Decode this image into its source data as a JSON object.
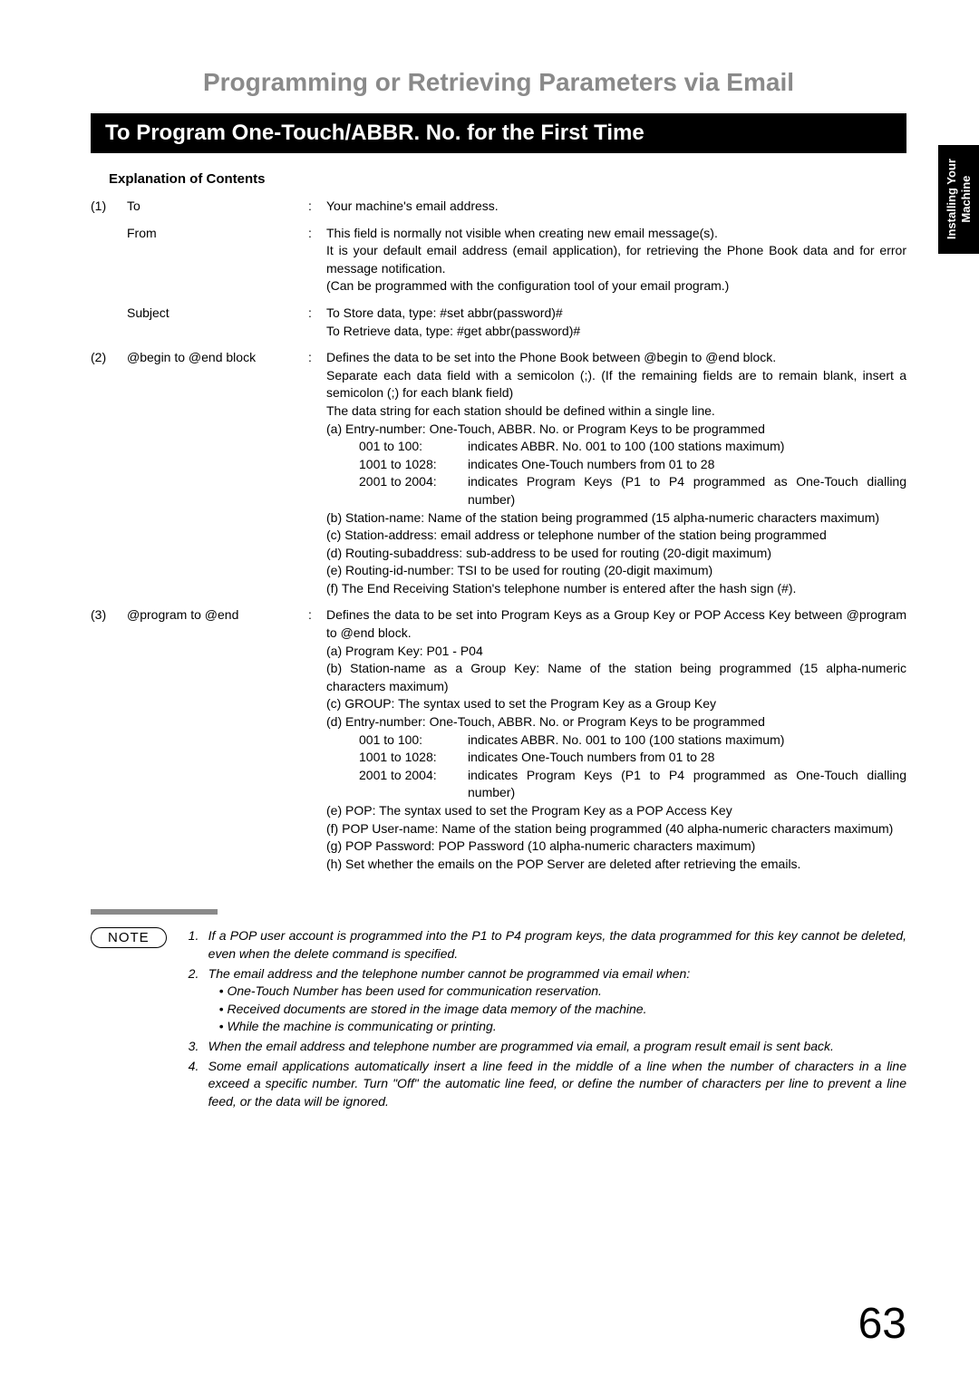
{
  "mainTitle": "Programming or Retrieving Parameters via Email",
  "sectionBar": "To Program One-Touch/ABBR. No. for the First Time",
  "sideTab": "Installing Your\nMachine",
  "explanationTitle": "Explanation of Contents",
  "rows": [
    {
      "num": "(1)",
      "label": "To",
      "desc": "Your machine's email address."
    },
    {
      "num": "",
      "label": "From",
      "desc": "This field is normally not visible when creating new email message(s).\nIt is your default email address (email application), for retrieving the Phone Book data and for error message notification.\n(Can be programmed with the configuration tool of your email program.)"
    },
    {
      "num": "",
      "label": "Subject",
      "desc": "To Store data, type: #set abbr(password)#\nTo Retrieve data, type: #get abbr(password)#"
    }
  ],
  "row2": {
    "num": "(2)",
    "label": "@begin to @end block",
    "intro": "Defines the data to be set into the Phone Book between @begin to @end block.\nSeparate each data field with a semicolon (;). (If the remaining fields are to remain blank, insert a semicolon (;) for each blank field)\nThe data string for each station should be defined within a single line.",
    "a_label": "(a) Entry-number:  One-Touch, ABBR. No. or Program Keys to be programmed",
    "ranges": [
      {
        "r": "001 to 100:",
        "t": "indicates ABBR. No. 001 to 100 (100 stations maximum)"
      },
      {
        "r": "1001 to 1028:",
        "t": "indicates One-Touch numbers from 01 to 28"
      },
      {
        "r": "2001 to 2004:",
        "t": "indicates Program Keys (P1 to P4 programmed as One-Touch dialling number)"
      }
    ],
    "items": [
      "(b) Station-name:   Name of the station being programmed (15 alpha-numeric characters maximum)",
      "(c) Station-address:   email address or telephone number of the station being programmed",
      "(d) Routing-subaddress:  sub-address to be used for routing (20-digit maximum)",
      "(e) Routing-id-number:  TSI to be used for routing (20-digit maximum)",
      "(f)  The End Receiving Station's telephone number is entered after the hash sign (#)."
    ]
  },
  "row3": {
    "num": "(3)",
    "label": "@program to @end",
    "intro": "Defines the data to be set into Program Keys as a Group Key or POP Access Key between @program to @end block.",
    "pre_items": [
      "(a) Program Key: P01 - P04",
      "(b) Station-name as a Group Key: Name of the station being programmed (15 alpha-numeric characters maximum)",
      "(c) GROUP: The syntax used to set the Program Key as a Group Key",
      "(d) Entry-number: One-Touch, ABBR. No. or Program Keys to be programmed"
    ],
    "ranges": [
      {
        "r": "001 to 100:",
        "t": "indicates ABBR. No. 001 to 100 (100 stations maximum)"
      },
      {
        "r": "1001 to 1028:",
        "t": "indicates One-Touch numbers from 01 to 28"
      },
      {
        "r": "2001 to 2004:",
        "t": "indicates Program Keys (P1 to P4 programmed as One-Touch dialling number)"
      }
    ],
    "post_items": [
      "(e) POP: The syntax used to set the Program Key as a POP Access Key",
      "(f)  POP User-name: Name of the station being programmed (40 alpha-numeric characters maximum)",
      "(g) POP Password: POP Password (10 alpha-numeric characters maximum)",
      "(h) Set whether the emails on the POP Server are deleted after retrieving the emails."
    ]
  },
  "noteLabel": "NOTE",
  "notes": [
    {
      "n": "1.",
      "t": "If a POP user account is programmed into the P1 to P4 program keys, the data programmed for this key cannot be deleted, even when the delete command is specified."
    },
    {
      "n": "2.",
      "t": "The email address and the telephone number cannot be programmed via email when:",
      "bullets": [
        "• One-Touch Number has been used for communication reservation.",
        "• Received documents are stored in the image data memory of the machine.",
        "• While the machine is communicating or printing."
      ]
    },
    {
      "n": "3.",
      "t": "When the email address and telephone number are programmed via email, a program result email is sent back."
    },
    {
      "n": "4.",
      "t": "Some email applications automatically insert a line feed in the middle of a line when the number of characters in a line exceed a specific number. Turn \"Off\" the automatic line feed, or define the number of characters per line to prevent a line feed, or the data will be ignored."
    }
  ],
  "pageNumber": "63"
}
